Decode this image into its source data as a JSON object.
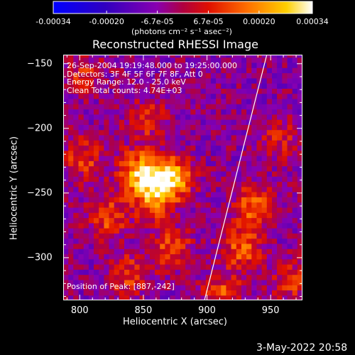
{
  "colorbar": {
    "tick_labels": [
      "-0.00034",
      "-0.00020",
      "-6.7e-05",
      "6.7e-05",
      "0.00020",
      "0.00034"
    ],
    "tick_values": [
      -0.00034,
      -0.0002,
      -6.7e-05,
      6.7e-05,
      0.0002,
      0.00034
    ],
    "range": [
      -0.00034,
      0.00034
    ],
    "unit_label": "(photons cm⁻² s⁻¹ asec⁻²)",
    "colors": [
      "#0000ff",
      "#5a0090",
      "#8800b0",
      "#cc0000",
      "#ff6000",
      "#ffcc00",
      "#ffffff"
    ]
  },
  "chart_data": {
    "type": "heatmap",
    "title": "Reconstructed RHESSI Image",
    "xlabel": "Heliocentric X (arcsec)",
    "ylabel": "Heliocentric Y (arcsec)",
    "xlim": [
      787,
      975
    ],
    "ylim": [
      -333,
      -143
    ],
    "x_ticks": [
      800,
      850,
      900,
      950
    ],
    "y_ticks": [
      -150,
      -200,
      -250,
      -300
    ],
    "x_tick_labels": [
      "800",
      "850",
      "900",
      "950"
    ],
    "y_tick_labels": [
      "−150",
      "−200",
      "−250",
      "−300"
    ],
    "info_lines": [
      "26-Sep-2004 19:19:48.000 to 19:25:00.000",
      "Detectors: 3F 4F 5F 6F 7F 8F, Att 0",
      "Energy Range: 12.0 - 25.0 keV",
      "Clean    Total counts: 4.74E+03"
    ],
    "peak_label": "Position of Peak: [887,-242]",
    "peak": [
      887,
      -242
    ],
    "limb_line": [
      [
        898,
        -333
      ],
      [
        947,
        -143
      ]
    ],
    "hotspots": [
      {
        "x": 845,
        "y": -235,
        "amp": 0.0003
      },
      {
        "x": 870,
        "y": -240,
        "amp": 0.00034
      },
      {
        "x": 855,
        "y": -255,
        "amp": 0.00025
      },
      {
        "x": 820,
        "y": -270,
        "amp": 0.00018
      },
      {
        "x": 935,
        "y": -262,
        "amp": 0.00022
      },
      {
        "x": 925,
        "y": -295,
        "amp": 0.0002
      },
      {
        "x": 870,
        "y": -295,
        "amp": 0.00018
      },
      {
        "x": 835,
        "y": -315,
        "amp": 0.00016
      },
      {
        "x": 955,
        "y": -210,
        "amp": 0.00012
      },
      {
        "x": 850,
        "y": -195,
        "amp": 0.00014
      },
      {
        "x": 800,
        "y": -225,
        "amp": 0.00016
      },
      {
        "x": 800,
        "y": -160,
        "amp": 0.00012
      },
      {
        "x": 910,
        "y": -330,
        "amp": 0.00018
      },
      {
        "x": 965,
        "y": -320,
        "amp": 0.00014
      }
    ]
  },
  "timestamp": "3-May-2022 20:58"
}
